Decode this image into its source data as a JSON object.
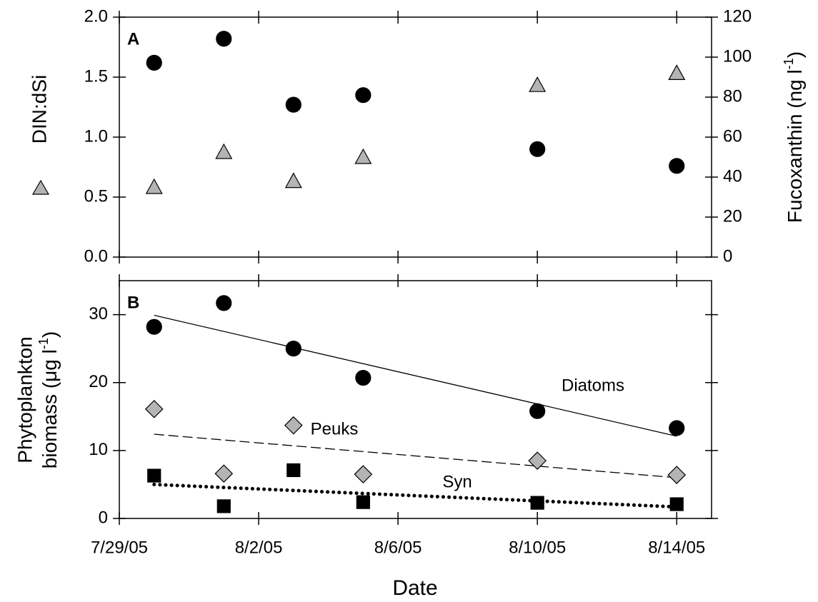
{
  "chart_data": [
    {
      "type": "scatter",
      "panel_label": "A",
      "ylabel": "DIN:dSi",
      "y2label": [
        "Fucoxanthin (ng l",
        "-1",
        ")"
      ],
      "x": [
        "2005-07-30",
        "2005-08-01",
        "2005-08-03",
        "2005-08-05",
        "2005-08-10",
        "2005-08-14"
      ],
      "xlim": [
        "2005-07-29",
        "2005-08-15"
      ],
      "ylim": [
        0,
        2
      ],
      "yticks": [
        {
          "value": 0,
          "label": "0.0"
        },
        0.5,
        {
          "value": 1,
          "label": "1.0"
        },
        1.5,
        {
          "value": 2,
          "label": "2.0"
        }
      ],
      "y2lim": [
        0,
        120
      ],
      "y2ticks": [
        0,
        20,
        40,
        60,
        80,
        100,
        120
      ],
      "series": [
        {
          "marker": "circle",
          "color": "#000000",
          "values": [
            1.62,
            1.82,
            1.27,
            1.35,
            0.9,
            0.76
          ]
        },
        {
          "marker": "triangle",
          "color": "#b4b4b4",
          "axis": "y2",
          "values": [
            35,
            52.5,
            38,
            50,
            86,
            92
          ]
        }
      ]
    },
    {
      "type": "scatter",
      "panel_label": "B",
      "xlabel": "Date",
      "ylabel": {
        "line1": "Phytoplankton",
        "line2": [
          "biomass (μg l",
          "-1",
          ")"
        ]
      },
      "x": [
        "2005-07-30",
        "2005-08-01",
        "2005-08-03",
        "2005-08-05",
        "2005-08-10",
        "2005-08-14"
      ],
      "xlim": [
        "2005-07-29",
        "2005-08-15"
      ],
      "xticks": [
        {
          "value": "2005-07-29",
          "label": "7/29/05"
        },
        {
          "value": "2005-08-02",
          "label": "8/2/05"
        },
        {
          "value": "2005-08-06",
          "label": "8/6/05"
        },
        {
          "value": "2005-08-10",
          "label": "8/10/05"
        },
        {
          "value": "2005-08-14",
          "label": "8/14/05"
        }
      ],
      "ylim": [
        0,
        35
      ],
      "yticks": [
        0,
        10,
        20,
        30
      ],
      "series": [
        {
          "name": "Diatoms",
          "marker": "circle",
          "color": "#000000",
          "values": [
            28.2,
            31.7,
            25.0,
            20.7,
            15.8,
            13.3
          ],
          "trend_x": [
            "2005-07-30",
            "2005-08-14"
          ],
          "trend": [
            29.9,
            12.1
          ],
          "trend_style": "solid"
        },
        {
          "name": "Peuks",
          "marker": "diamond",
          "color": "#b4b4b4",
          "values": [
            16.1,
            6.6,
            13.7,
            6.5,
            8.5,
            6.4
          ],
          "trend_x": [
            "2005-07-30",
            "2005-08-14"
          ],
          "trend": [
            12.4,
            6.0
          ],
          "trend_style": "dashed"
        },
        {
          "name": "Syn",
          "marker": "square",
          "color": "#000000",
          "values": [
            6.3,
            1.8,
            7.1,
            2.4,
            2.3,
            2.1
          ],
          "trend_x": [
            "2005-07-30",
            "2005-08-14"
          ],
          "trend": [
            5.0,
            1.7
          ],
          "trend_style": "dotted"
        }
      ]
    }
  ]
}
